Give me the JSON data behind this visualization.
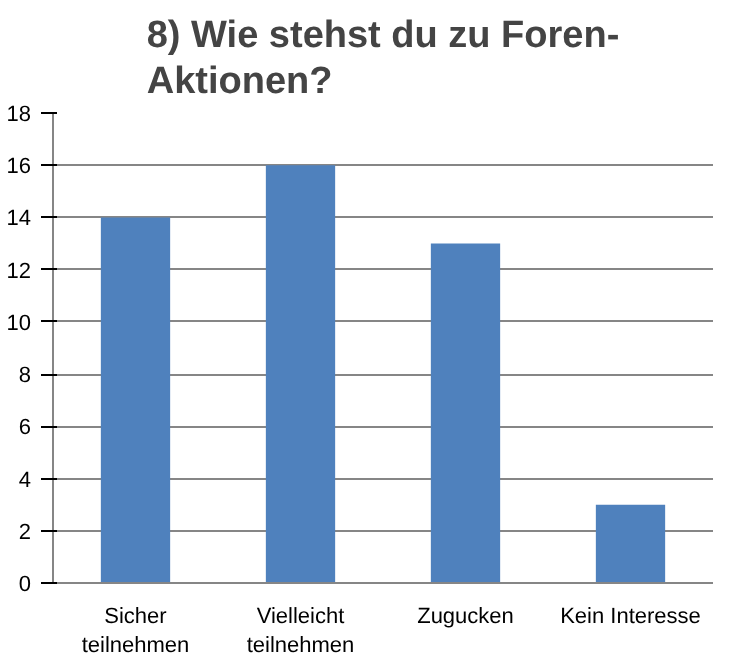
{
  "chart_data": {
    "type": "bar",
    "title": "8) Wie stehst du zu Foren-Aktionen?",
    "categories": [
      "Sicher teilnehmen",
      "Vielleicht teilnehmen",
      "Zugucken",
      "Kein Interesse"
    ],
    "values": [
      14,
      16,
      13,
      3
    ],
    "color": "#4f81bd",
    "ylim": [
      0,
      18
    ],
    "yticks": [
      0,
      2,
      4,
      6,
      8,
      10,
      12,
      14,
      16,
      18
    ],
    "grid": "y"
  }
}
